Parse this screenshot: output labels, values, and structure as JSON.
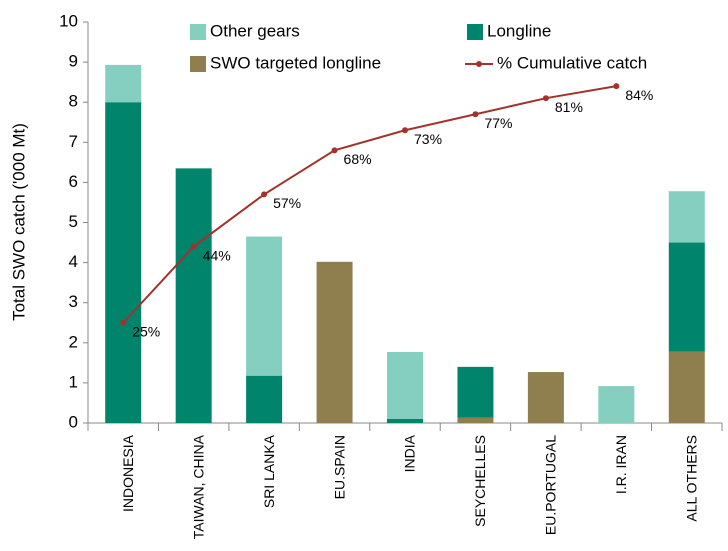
{
  "chart_data": {
    "type": "bar",
    "stacked": true,
    "y_label": "Total SWO catch ('000 Mt)",
    "categories": [
      "INDONESIA",
      "TAIWAN, CHINA",
      "SRI LANKA",
      "EU.SPAIN",
      "INDIA",
      "SEYCHELLES",
      "EU.PORTUGAL",
      "I.R. IRAN",
      "ALL OTHERS"
    ],
    "series": [
      {
        "name": "Other gears",
        "color": "#84cfc0",
        "values": [
          0.93,
          0,
          3.47,
          0,
          1.67,
          0,
          0,
          0.92,
          1.28
        ]
      },
      {
        "name": "Longline",
        "color": "#00846b",
        "values": [
          8.0,
          6.35,
          1.18,
          0,
          0.1,
          1.27,
          0,
          0,
          2.72
        ]
      },
      {
        "name": "SWO targeted longline",
        "color": "#8f7f4f",
        "values": [
          0,
          0,
          0,
          4.02,
          0,
          0.13,
          1.27,
          0,
          1.78
        ]
      },
      {
        "name": "% Cumulative catch",
        "color": "#a3322c",
        "type": "line",
        "axis": "y2",
        "values": [
          25,
          44,
          57,
          68,
          73,
          77,
          81,
          84,
          null
        ],
        "value_labels": [
          "25%",
          "44%",
          "57%",
          "68%",
          "73%",
          "77%",
          "81%",
          "84%",
          null
        ]
      }
    ],
    "stack_order": [
      2,
      1,
      0
    ],
    "ylim": [
      0,
      10
    ],
    "yticks": [
      0,
      1,
      2,
      3,
      4,
      5,
      6,
      7,
      8,
      9,
      10
    ],
    "y2lim": [
      0,
      100
    ],
    "grid": false
  }
}
